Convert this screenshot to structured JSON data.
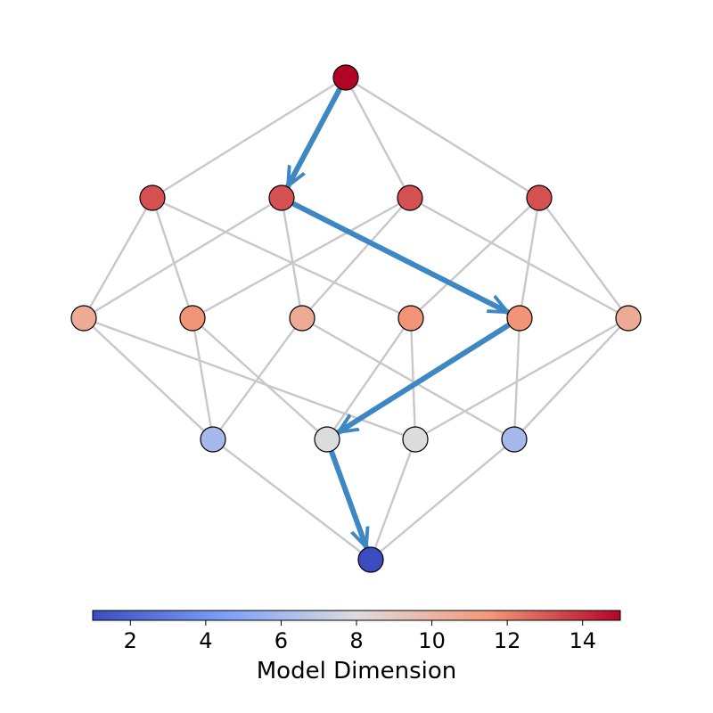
{
  "diagram": {
    "colormap": "coolwarm",
    "value_range": [
      1,
      15
    ],
    "edge_color": "#c8c8c8",
    "path_color": "#3d87c2",
    "nodes": [
      {
        "id": "n0",
        "value": 15
      },
      {
        "id": "n1",
        "value": 13.2
      },
      {
        "id": "n2",
        "value": 13.2
      },
      {
        "id": "n3",
        "value": 13.2
      },
      {
        "id": "n4",
        "value": 13.2
      },
      {
        "id": "n5",
        "value": 10.5
      },
      {
        "id": "n6",
        "value": 11.6
      },
      {
        "id": "n7",
        "value": 10.5
      },
      {
        "id": "n8",
        "value": 11.6
      },
      {
        "id": "n9",
        "value": 11.6
      },
      {
        "id": "n10",
        "value": 10.5
      },
      {
        "id": "n11",
        "value": 6
      },
      {
        "id": "n12",
        "value": 8
      },
      {
        "id": "n13",
        "value": 8
      },
      {
        "id": "n14",
        "value": 6
      },
      {
        "id": "n15",
        "value": 1
      }
    ],
    "edges": [
      [
        "n0",
        "n1"
      ],
      [
        "n0",
        "n2"
      ],
      [
        "n0",
        "n3"
      ],
      [
        "n0",
        "n4"
      ],
      [
        "n1",
        "n5"
      ],
      [
        "n1",
        "n6"
      ],
      [
        "n1",
        "n8"
      ],
      [
        "n2",
        "n5"
      ],
      [
        "n2",
        "n7"
      ],
      [
        "n2",
        "n9"
      ],
      [
        "n3",
        "n6"
      ],
      [
        "n3",
        "n7"
      ],
      [
        "n3",
        "n10"
      ],
      [
        "n4",
        "n8"
      ],
      [
        "n4",
        "n9"
      ],
      [
        "n4",
        "n10"
      ],
      [
        "n5",
        "n11"
      ],
      [
        "n5",
        "n13"
      ],
      [
        "n6",
        "n11"
      ],
      [
        "n6",
        "n12"
      ],
      [
        "n7",
        "n11"
      ],
      [
        "n7",
        "n14"
      ],
      [
        "n8",
        "n12"
      ],
      [
        "n8",
        "n13"
      ],
      [
        "n9",
        "n12"
      ],
      [
        "n9",
        "n14"
      ],
      [
        "n10",
        "n13"
      ],
      [
        "n10",
        "n14"
      ],
      [
        "n11",
        "n15"
      ],
      [
        "n12",
        "n15"
      ],
      [
        "n13",
        "n15"
      ],
      [
        "n14",
        "n15"
      ]
    ],
    "path": [
      "n0",
      "n2",
      "n9",
      "n12",
      "n15"
    ]
  },
  "colorbar": {
    "label": "Model Dimension",
    "ticks": [
      "2",
      "4",
      "6",
      "8",
      "10",
      "12",
      "14"
    ],
    "range": [
      1,
      15
    ]
  }
}
